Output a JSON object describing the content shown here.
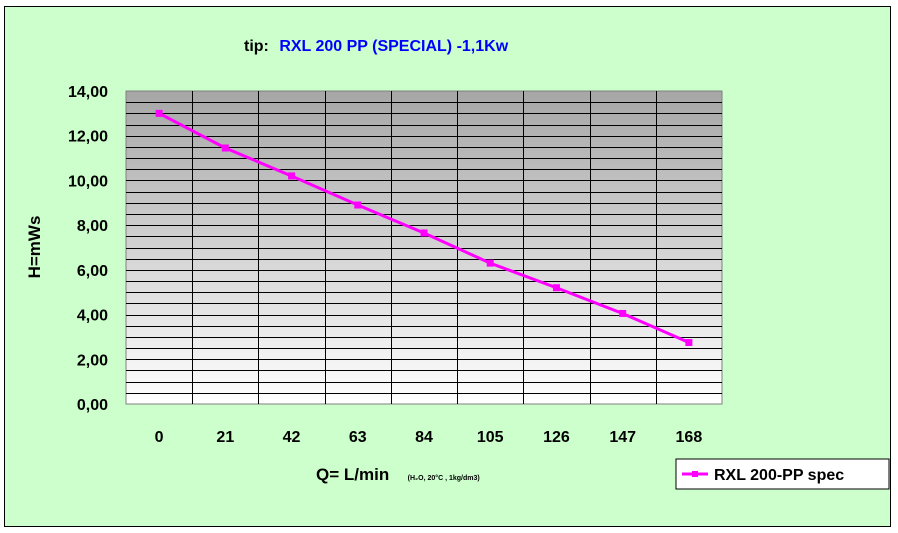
{
  "chart_data": {
    "type": "line",
    "title_prefix": "tip:",
    "title": "RXL 200 PP (SPECIAL)  -1,1Kw",
    "xlabel": "Q= L/min",
    "xlabel_note": "(H₂O, 20°C , 1kg/dm3)",
    "ylabel": "H=mWs",
    "categories": [
      "0",
      "21",
      "42",
      "63",
      "84",
      "105",
      "126",
      "147",
      "168"
    ],
    "series": [
      {
        "name": "RXL 200-PP spec",
        "values": [
          13.0,
          11.45,
          10.2,
          8.9,
          7.65,
          6.3,
          5.2,
          4.05,
          2.75
        ],
        "color": "#ff00ff"
      }
    ],
    "y_ticks": [
      "0,00",
      "2,00",
      "4,00",
      "6,00",
      "8,00",
      "10,00",
      "12,00",
      "14,00"
    ],
    "ylim": [
      0,
      14
    ],
    "y_minor_step": 0.5,
    "grid": true,
    "legend_position": "bottom-right",
    "colors": {
      "background": "#ccffcc",
      "plot_top": "#a6a6a6",
      "plot_bottom": "#ffffff",
      "series": "#ff00ff",
      "title": "#0000ff"
    }
  }
}
